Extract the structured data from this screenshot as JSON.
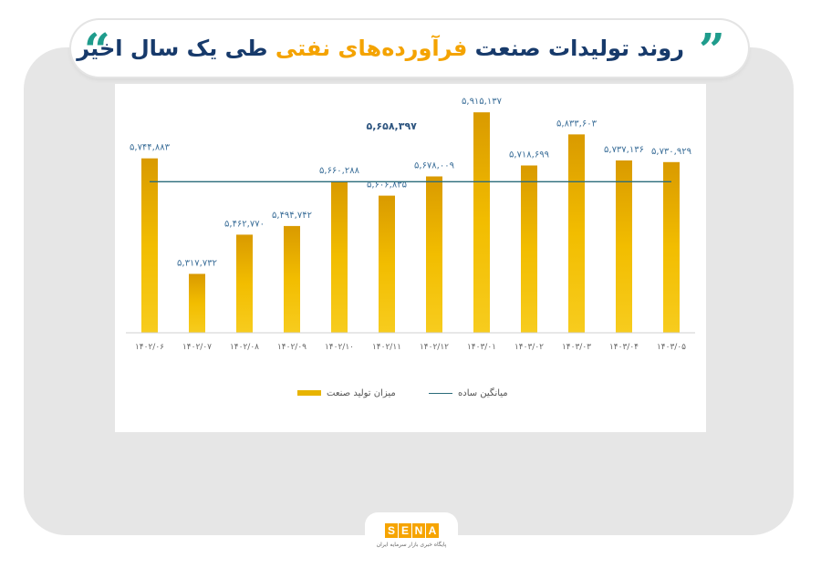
{
  "header": {
    "title_part1": "روند تولیدات صنعت",
    "title_highlight": "فرآورده‌های نفتی",
    "title_part2": "طی یک سال اخیر",
    "quote_left": "“",
    "quote_right": "”"
  },
  "colors": {
    "accent_teal": "#1f9c8c",
    "title_navy": "#173a6b",
    "highlight_orange": "#f4a300",
    "bar_gold": "#e8b400",
    "average_line": "#2a6b7a",
    "label_blue": "#3c6f99"
  },
  "chart_data": {
    "type": "bar",
    "categories": [
      "۱۴۰۲/۰۶",
      "۱۴۰۲/۰۷",
      "۱۴۰۲/۰۸",
      "۱۴۰۲/۰۹",
      "۱۴۰۲/۱۰",
      "۱۴۰۲/۱۱",
      "۱۴۰۲/۱۲",
      "۱۴۰۳/۰۱",
      "۱۴۰۳/۰۲",
      "۱۴۰۳/۰۳",
      "۱۴۰۳/۰۴",
      "۱۴۰۳/۰۵"
    ],
    "series": [
      {
        "name": "میزان تولید صنعت",
        "values": [
          5744883,
          5317732,
          5462770,
          5494742,
          5660288,
          5606835,
          5678009,
          5915137,
          5718699,
          5833603,
          5737136,
          5730929
        ],
        "labels": [
          "۵,۷۴۴,۸۸۳",
          "۵,۳۱۷,۷۳۲",
          "۵,۴۶۲,۷۷۰",
          "۵,۴۹۴,۷۴۲",
          "۵,۶۶۰,۲۸۸",
          "۵,۶۰۶,۸۳۵",
          "۵,۶۷۸,۰۰۹",
          "۵,۹۱۵,۱۳۷",
          "۵,۷۱۸,۶۹۹",
          "۵,۸۳۳,۶۰۳",
          "۵,۷۳۷,۱۳۶",
          "۵,۷۳۰,۹۲۹"
        ]
      }
    ],
    "average": {
      "name": "میانگین ساده",
      "value": 5658397,
      "label": "۵,۶۵۸,۳۹۷"
    },
    "ylim": [
      5100000,
      6000000
    ],
    "grid": false,
    "legend_position": "bottom"
  },
  "legend": {
    "bar_label": "میزان تولید صنعت",
    "line_label": "میانگین ساده"
  },
  "logo": {
    "letters": [
      "S",
      "E",
      "N",
      "A"
    ],
    "tagline": "پایگاه خبری بازار سرمایه ایران"
  }
}
